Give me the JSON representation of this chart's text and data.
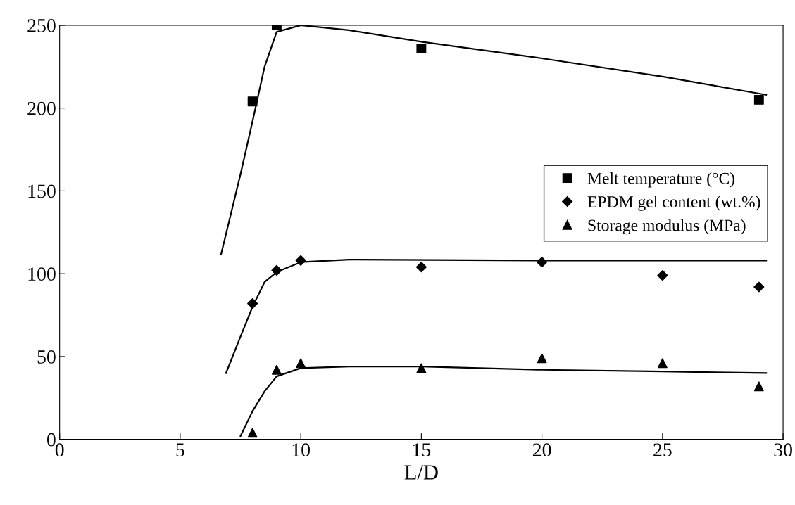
{
  "chart_data": {
    "type": "scatter",
    "xlabel": "L/D",
    "xlim": [
      0,
      30
    ],
    "xticks": [
      0,
      5,
      10,
      15,
      20,
      25,
      30
    ],
    "ylim": [
      0,
      250
    ],
    "yticks": [
      0,
      50,
      100,
      150,
      200,
      250
    ],
    "grid": false,
    "legend": "right",
    "series": [
      {
        "name": "Melt temperature (°C)",
        "color": "#000000",
        "marker": "square",
        "x": [
          8,
          9,
          15,
          29
        ],
        "values": [
          204,
          250,
          236,
          205
        ]
      },
      {
        "name": "EPDM gel content (wt.%)",
        "color": "#000000",
        "marker": "diamond",
        "x": [
          8,
          9,
          10,
          15,
          20,
          25,
          29
        ],
        "values": [
          82,
          102,
          108,
          104,
          107,
          99,
          92
        ]
      },
      {
        "name": "Storage modulus (MPa)",
        "color": "#000000",
        "marker": "triangle",
        "x": [
          8,
          9,
          10,
          15,
          20,
          25,
          29
        ],
        "values": [
          4,
          42,
          46,
          43,
          49,
          46,
          32
        ]
      },
      {
        "type": "line",
        "color": "#000000",
        "marker": "none",
        "line_style": "solid",
        "x": [
          6.7,
          7.5,
          8,
          8.5,
          9,
          10,
          12,
          15,
          20,
          25,
          29.3
        ],
        "values": [
          112,
          160,
          192,
          225,
          246,
          250,
          247,
          240,
          230,
          219,
          208
        ]
      },
      {
        "type": "line",
        "color": "#000000",
        "marker": "none",
        "line_style": "solid",
        "x": [
          6.9,
          7.5,
          8,
          8.5,
          9,
          10,
          12,
          20,
          29.3
        ],
        "values": [
          40,
          62,
          80,
          95,
          101,
          107,
          108.5,
          108,
          108
        ]
      },
      {
        "type": "line",
        "color": "#000000",
        "marker": "none",
        "line_style": "solid",
        "x": [
          7.5,
          8,
          8.5,
          9,
          10,
          12,
          15,
          20,
          25,
          29.3
        ],
        "values": [
          2,
          17,
          29,
          38,
          43,
          44,
          44,
          42,
          41,
          40
        ]
      }
    ]
  }
}
